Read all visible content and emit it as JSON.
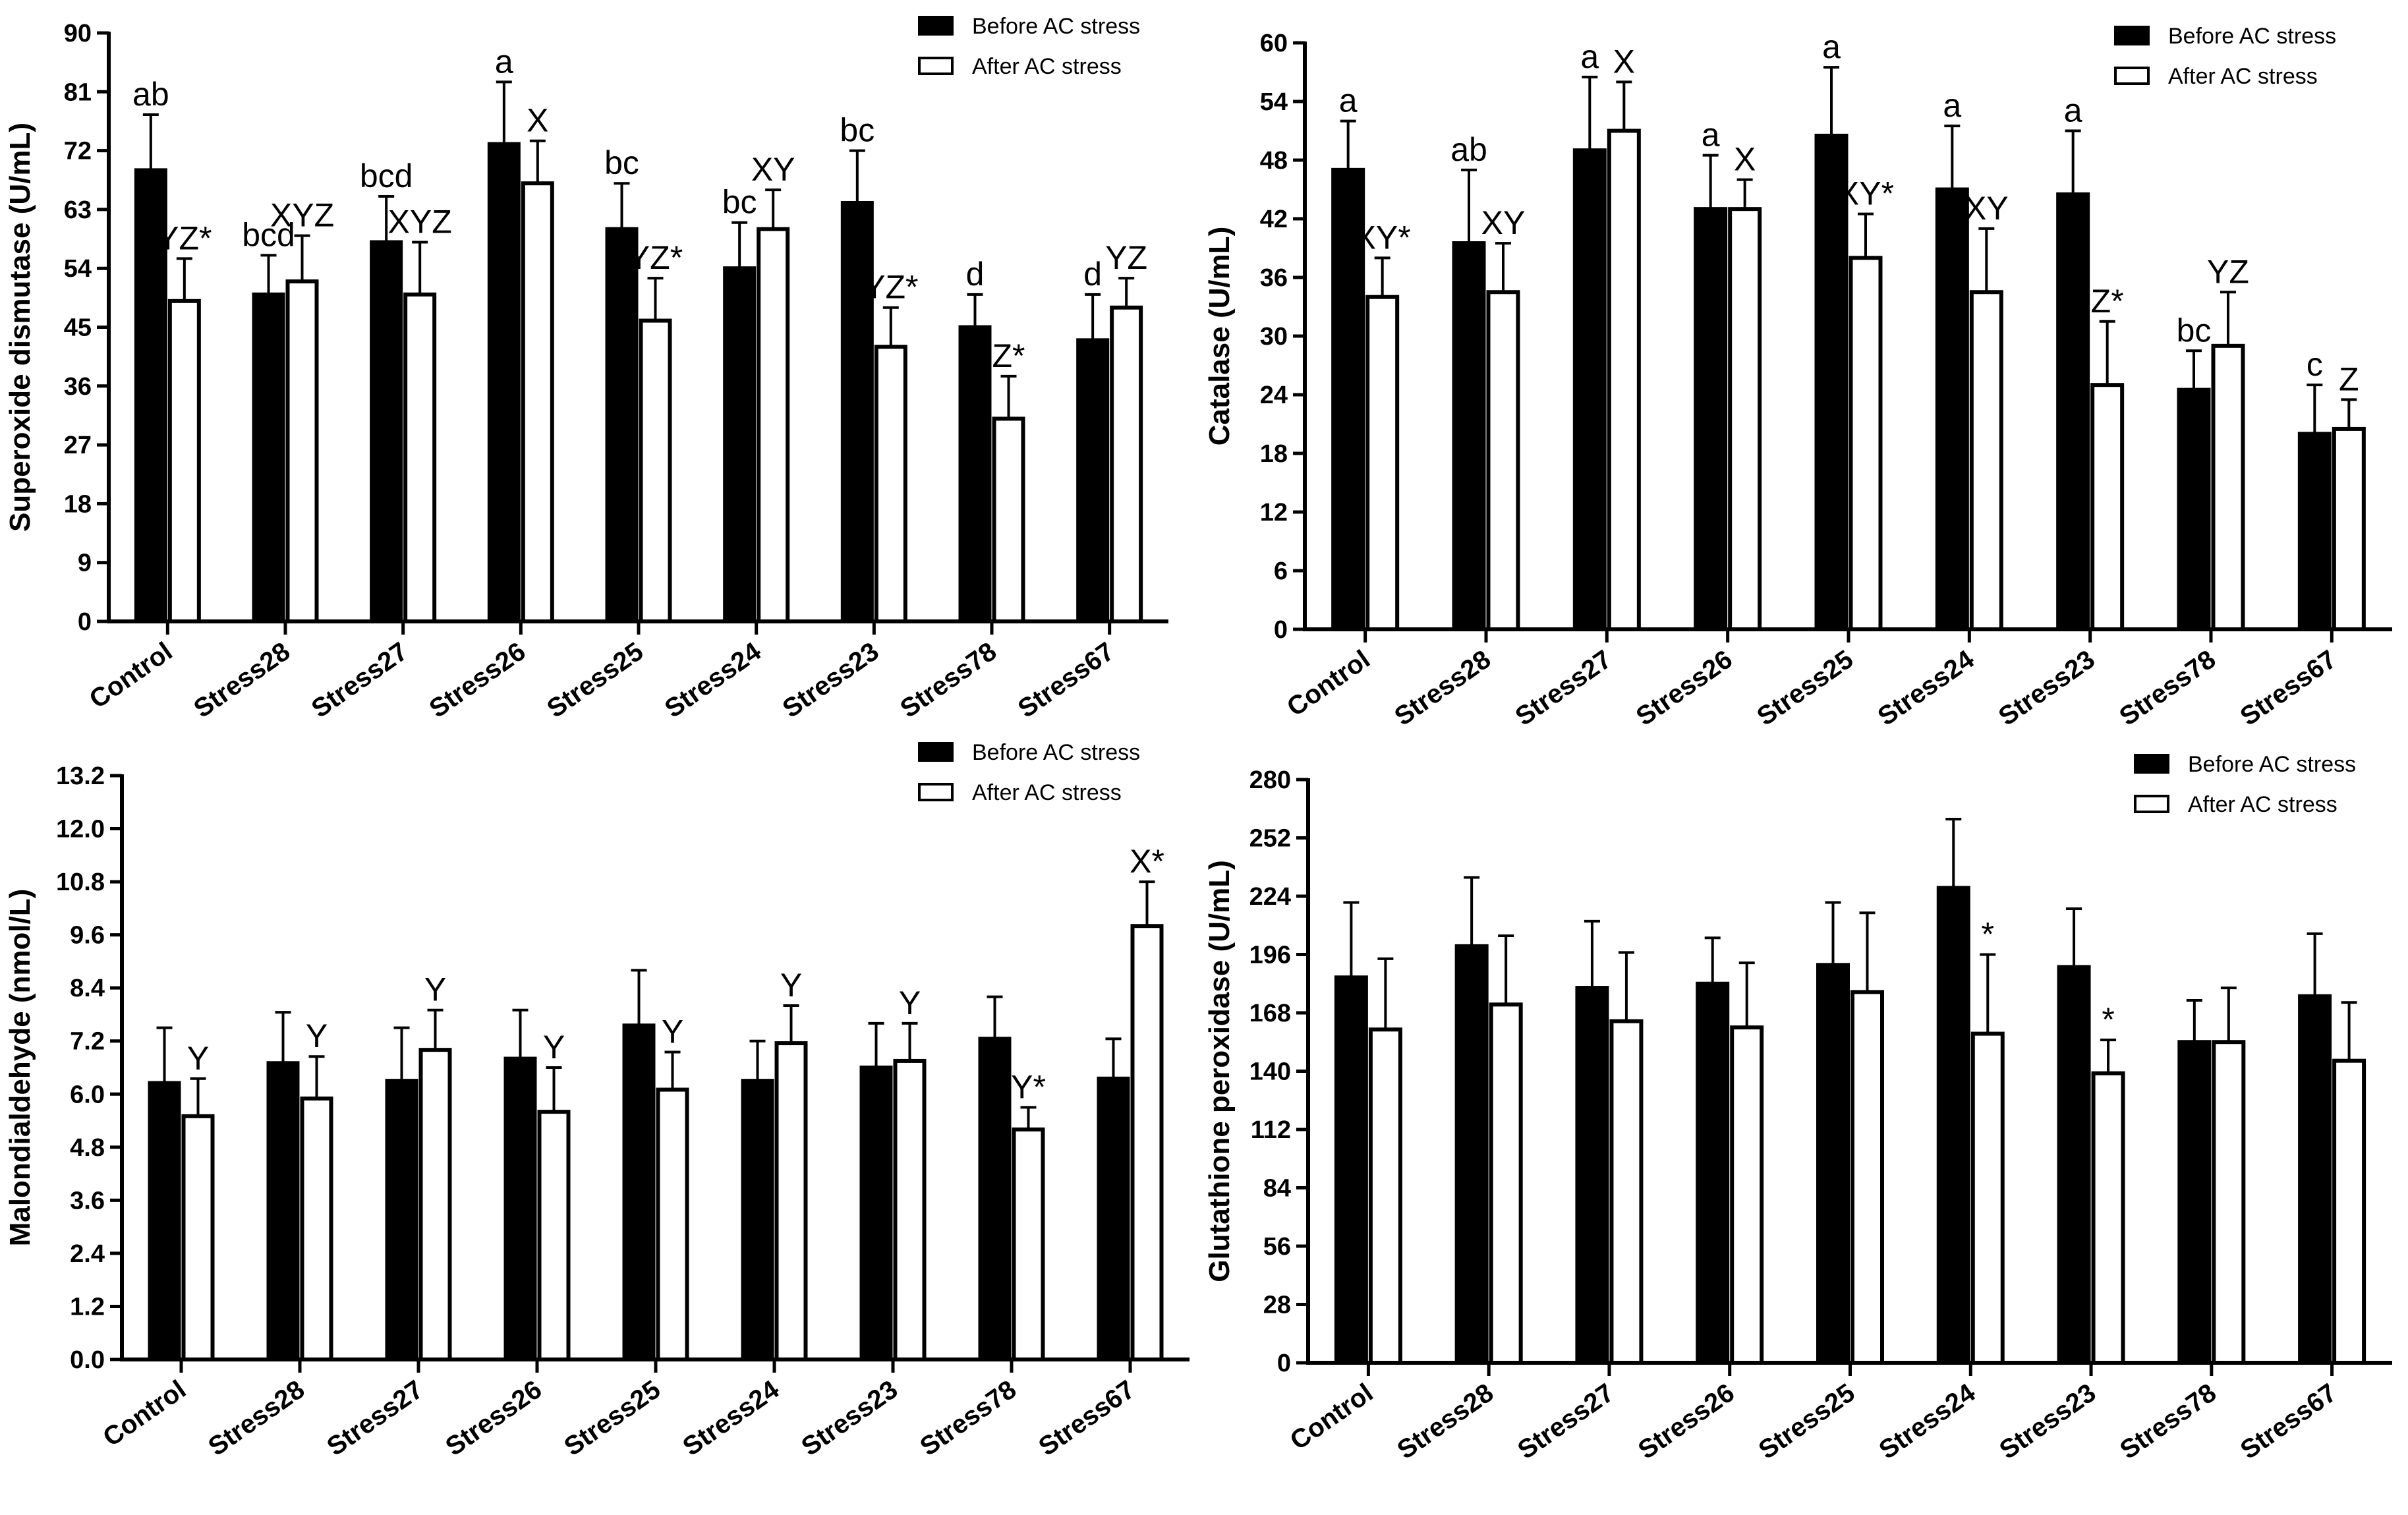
{
  "legend": {
    "before": "Before AC stress",
    "after": "After AC stress"
  },
  "colors": {
    "before": "#000000",
    "after": "#ffffff",
    "axis": "#000000"
  },
  "chart_data": [
    {
      "type": "bar",
      "ylabel": "Superoxide dismutase (U/mL)",
      "ylim": [
        0,
        90
      ],
      "yticks": [
        "0",
        "9",
        "18",
        "27",
        "36",
        "45",
        "54",
        "63",
        "72",
        "81",
        "90"
      ],
      "categories": [
        "Control",
        "Stress28",
        "Stress27",
        "Stress26",
        "Stress25",
        "Stress24",
        "Stress23",
        "Stress78",
        "Stress67"
      ],
      "legend_position": "top-right",
      "series": [
        {
          "name": "Before AC stress",
          "values": [
            69,
            50,
            58,
            73,
            60,
            54,
            64,
            45,
            43
          ],
          "errors": [
            8.5,
            6,
            7,
            9.5,
            7,
            7,
            8,
            5,
            7
          ],
          "labels": [
            "ab",
            "bcd",
            "bcd",
            "a",
            "bc",
            "bc",
            "bc",
            "d",
            "d"
          ]
        },
        {
          "name": "After AC stress",
          "values": [
            49,
            52,
            50,
            67,
            46,
            60,
            42,
            31,
            48
          ],
          "errors": [
            6.5,
            7,
            8,
            6.5,
            6.5,
            6,
            6,
            6.5,
            4.5
          ],
          "labels": [
            "YZ*",
            "XYZ",
            "XYZ",
            "X",
            "YZ*",
            "XY",
            "YZ*",
            "Z*",
            "YZ"
          ]
        }
      ]
    },
    {
      "type": "bar",
      "ylabel": "Catalase (U/mL)",
      "ylim": [
        0,
        60
      ],
      "yticks": [
        "0",
        "6",
        "12",
        "18",
        "24",
        "30",
        "36",
        "42",
        "48",
        "54",
        "60"
      ],
      "categories": [
        "Control",
        "Stress28",
        "Stress27",
        "Stress26",
        "Stress25",
        "Stress24",
        "Stress23",
        "Stress78",
        "Stress67"
      ],
      "legend_position": "top-right",
      "series": [
        {
          "name": "Before AC stress",
          "values": [
            47,
            39.5,
            49,
            43,
            50.5,
            45,
            44.5,
            24.5,
            20
          ],
          "errors": [
            5,
            7.5,
            7.5,
            5.5,
            7,
            6.5,
            6.5,
            4,
            5
          ],
          "labels": [
            "a",
            "ab",
            "a",
            "a",
            "a",
            "a",
            "a",
            "bc",
            "c"
          ]
        },
        {
          "name": "After AC stress",
          "values": [
            34,
            34.5,
            51,
            43,
            38,
            34.5,
            25,
            29,
            20.5
          ],
          "errors": [
            4,
            5,
            5,
            3,
            4.5,
            6.5,
            6.5,
            5.5,
            3
          ],
          "labels": [
            "XY*",
            "XY",
            "X",
            "X",
            "XY*",
            "XY",
            "Z*",
            "YZ",
            "Z"
          ]
        }
      ]
    },
    {
      "type": "bar",
      "ylabel": "Malondialdehyde (nmol/L)",
      "ylim": [
        0,
        13.2
      ],
      "yticks": [
        "0.0",
        "1.2",
        "2.4",
        "3.6",
        "4.8",
        "6.0",
        "7.2",
        "8.4",
        "9.6",
        "10.8",
        "12.0",
        "13.2"
      ],
      "categories": [
        "Control",
        "Stress28",
        "Stress27",
        "Stress26",
        "Stress25",
        "Stress24",
        "Stress23",
        "Stress78",
        "Stress67"
      ],
      "legend_position": "top-right",
      "series": [
        {
          "name": "Before AC stress",
          "values": [
            6.25,
            6.7,
            6.3,
            6.8,
            7.55,
            6.3,
            6.6,
            7.25,
            6.35
          ],
          "errors": [
            1.25,
            1.15,
            1.2,
            1.1,
            1.25,
            0.9,
            1.0,
            0.95,
            0.9
          ],
          "labels": [
            "",
            "",
            "",
            "",
            "",
            "",
            "",
            "",
            ""
          ]
        },
        {
          "name": "After AC stress",
          "values": [
            5.5,
            5.9,
            7.0,
            5.6,
            6.1,
            7.15,
            6.75,
            5.2,
            9.8
          ],
          "errors": [
            0.85,
            0.95,
            0.9,
            1.0,
            0.85,
            0.85,
            0.85,
            0.5,
            1.0
          ],
          "labels": [
            "Y",
            "Y",
            "Y",
            "Y",
            "Y",
            "Y",
            "Y",
            "Y*",
            "X*"
          ]
        }
      ]
    },
    {
      "type": "bar",
      "ylabel": "Glutathione peroxidase (U/mL)",
      "ylim": [
        0,
        280
      ],
      "yticks": [
        "0",
        "28",
        "56",
        "84",
        "112",
        "140",
        "168",
        "196",
        "224",
        "252",
        "280"
      ],
      "categories": [
        "Control",
        "Stress28",
        "Stress27",
        "Stress26",
        "Stress25",
        "Stress24",
        "Stress23",
        "Stress78",
        "Stress67"
      ],
      "legend_position": "top-right",
      "series": [
        {
          "name": "Before AC stress",
          "values": [
            185,
            200,
            180,
            182,
            191,
            228,
            190,
            154,
            176
          ],
          "errors": [
            36,
            33,
            32,
            22,
            30,
            33,
            28,
            20,
            30
          ],
          "labels": [
            "",
            "",
            "",
            "",
            "",
            "",
            "",
            "",
            ""
          ]
        },
        {
          "name": "After AC stress",
          "values": [
            160,
            172,
            164,
            161,
            178,
            158,
            139,
            154,
            145
          ],
          "errors": [
            34,
            33,
            33,
            31,
            38,
            38,
            16,
            26,
            28
          ],
          "labels": [
            "",
            "",
            "",
            "",
            "",
            "*",
            "*",
            "",
            ""
          ]
        }
      ]
    }
  ]
}
